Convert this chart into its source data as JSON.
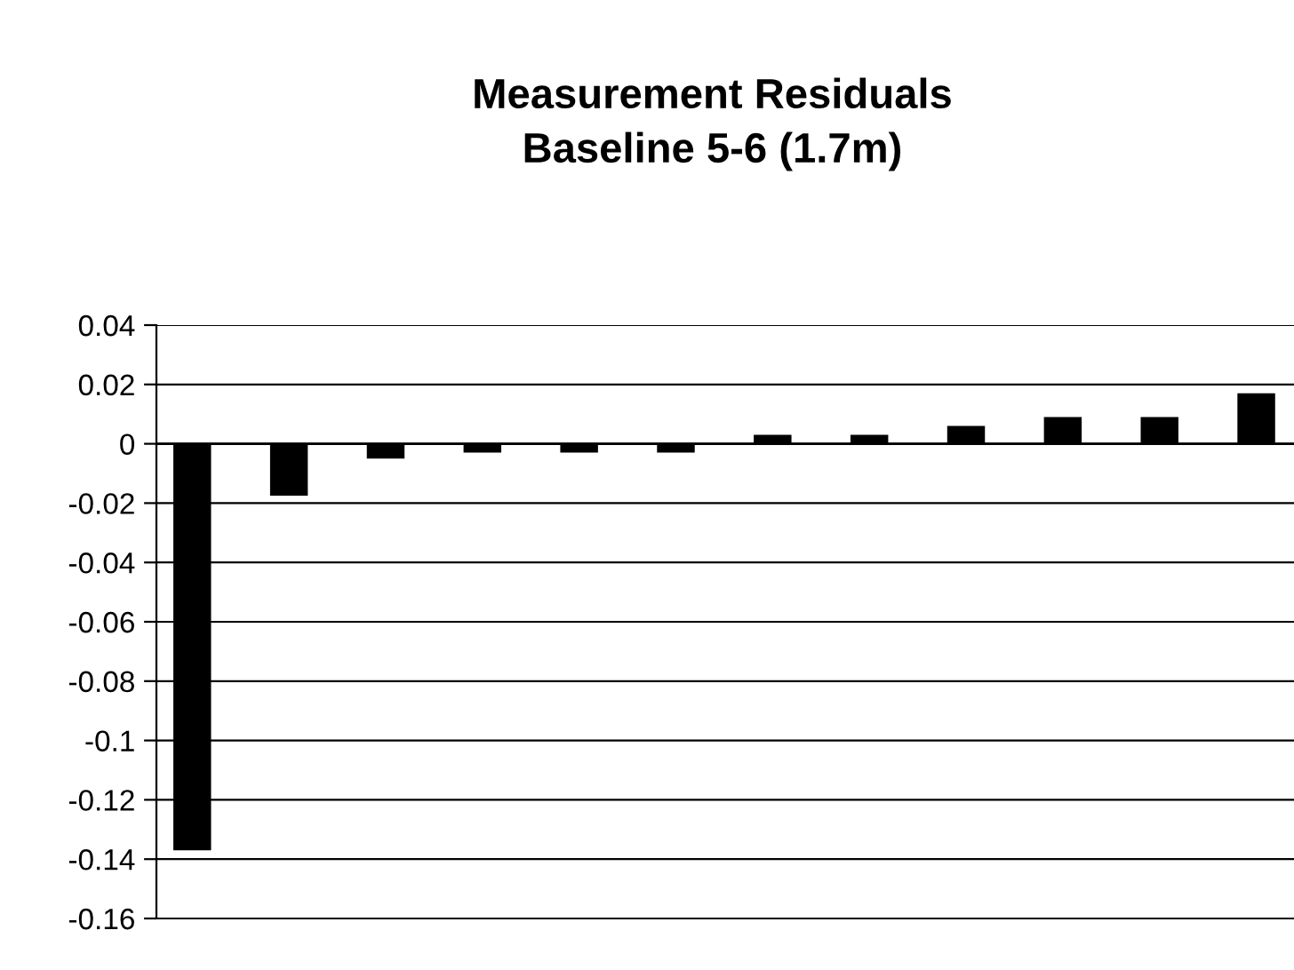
{
  "chart_data": {
    "type": "bar",
    "title": "Measurement Residuals\nBaseline 5-6 (1.7m)",
    "categories": [
      null,
      null,
      null,
      null,
      null,
      null,
      null,
      null,
      null,
      null,
      null,
      null
    ],
    "values": [
      -0.137,
      -0.0175,
      -0.005,
      -0.003,
      -0.003,
      -0.003,
      0.003,
      0.003,
      0.006,
      0.009,
      0.009,
      0.017
    ],
    "color": "#000000",
    "ylim": [
      -0.16,
      0.04
    ],
    "yticks": [
      {
        "value": -0.16,
        "label": "-0.16"
      },
      {
        "value": -0.14,
        "label": "-0.14"
      },
      {
        "value": -0.12,
        "label": "-0.12"
      },
      {
        "value": -0.1,
        "label": "-0.1"
      },
      {
        "value": -0.08,
        "label": "-0.08"
      },
      {
        "value": -0.06,
        "label": "-0.06"
      },
      {
        "value": -0.04,
        "label": "-0.04"
      },
      {
        "value": -0.02,
        "label": "-0.02"
      },
      0,
      {
        "value": 0.02,
        "label": "0.02"
      },
      {
        "value": 0.04,
        "label": "0.04"
      }
    ],
    "grid": "y",
    "tick_labels": "y",
    "legend": false
  }
}
